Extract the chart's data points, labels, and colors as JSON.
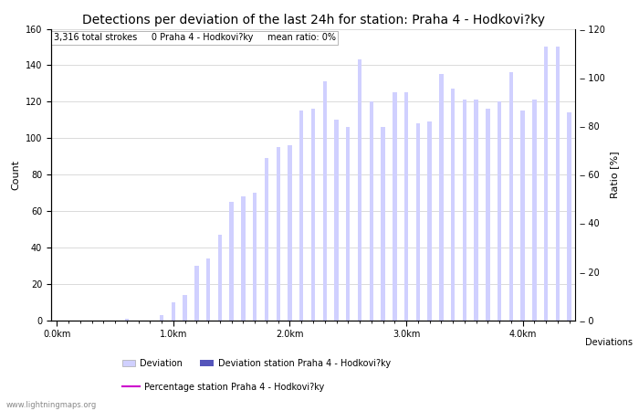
{
  "title": "Detections per deviation of the last 24h for station: Praha 4 - Hodkovi?ky",
  "xlabel": "Deviations",
  "ylabel_left": "Count",
  "ylabel_right": "Ratio [%]",
  "annotation": "3,316 total strokes     0 Praha 4 - Hodkovi?ky     mean ratio: 0%",
  "ylim_left": [
    0,
    160
  ],
  "ylim_right": [
    0,
    120
  ],
  "yticks_left": [
    0,
    20,
    40,
    60,
    80,
    100,
    120,
    140,
    160
  ],
  "yticks_right": [
    0,
    20,
    40,
    60,
    80,
    100,
    120
  ],
  "bar_color_light": "#d0d0ff",
  "bar_color_dark": "#5555bb",
  "line_color": "#cc00cc",
  "background_color": "#ffffff",
  "grid_color": "#cccccc",
  "watermark": "www.lightningmaps.org",
  "bar_values": [
    0,
    0,
    0,
    0,
    0,
    0,
    1,
    0,
    0,
    3,
    10,
    14,
    30,
    34,
    47,
    65,
    68,
    70,
    89,
    95,
    96,
    115,
    116,
    131,
    110,
    106,
    143,
    120,
    106,
    125,
    125,
    108,
    109,
    135,
    127,
    121,
    121,
    116,
    120,
    136,
    115,
    121,
    150,
    150,
    114
  ],
  "num_bars": 45,
  "x_tick_positions": [
    0,
    10,
    20,
    30,
    40
  ],
  "x_tick_labels": [
    "0.0km",
    "1.0km",
    "2.0km",
    "3.0km",
    "4.0km"
  ],
  "title_fontsize": 10,
  "tick_fontsize": 7,
  "label_fontsize": 8,
  "annotation_fontsize": 7,
  "legend_fontsize": 7
}
